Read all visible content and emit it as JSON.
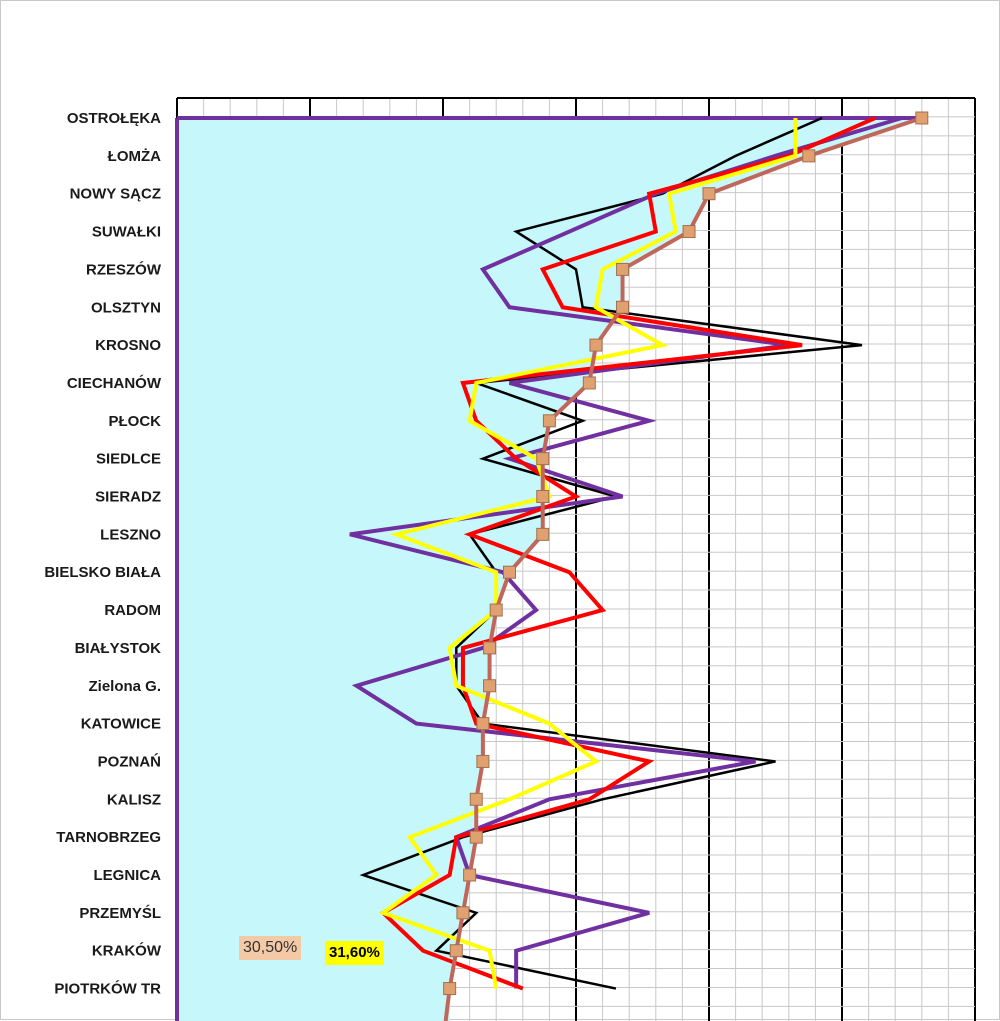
{
  "chart_data": {
    "type": "line",
    "categories": [
      "OSTROŁĘKA",
      "ŁOMŻA",
      "NOWY SĄCZ",
      "SUWAŁKI",
      "RZESZÓW",
      "OLSZTYN",
      "KROSNO",
      "CIECHANÓW",
      "PŁOCK",
      "SIEDLCE",
      "SIERADZ",
      "LESZNO",
      "BIELSKO BIAŁA",
      "RADOM",
      "BIAŁYSTOK",
      "Zielona G.",
      "KATOWICE",
      "POZNAŃ",
      "KALISZ",
      "TARNOBRZEG",
      "LEGNICA",
      "PRZEMYŚL",
      "KRAKÓW",
      "PIOTRKÓW TR"
    ],
    "xlim": [
      0,
      60
    ],
    "grid": true,
    "area_fill_color": "#c6f8fb",
    "area_border_color": "#7030a0",
    "series": [
      {
        "color": "#000000",
        "width": 2.5,
        "values": [
          48.5,
          42.0,
          36.5,
          25.5,
          30.0,
          30.5,
          51.5,
          22.5,
          30.5,
          23.0,
          33.0,
          22.0,
          24.0,
          24.0,
          21.0,
          21.0,
          23.0,
          45.0,
          32.0,
          21.5,
          14.0,
          22.5,
          19.5,
          33.0
        ]
      },
      {
        "color": "#7030a0",
        "width": 4,
        "values": [
          54.5,
          45.0,
          36.0,
          29.5,
          23.0,
          25.0,
          46.0,
          25.0,
          35.5,
          25.0,
          33.5,
          13.0,
          24.5,
          27.0,
          23.0,
          13.5,
          18.0,
          43.5,
          28.0,
          21.0,
          22.0,
          35.5,
          25.5,
          25.5
        ]
      },
      {
        "color": "#ff0000",
        "width": 4,
        "values": [
          52.5,
          46.0,
          35.5,
          36.0,
          27.5,
          29.0,
          47.0,
          21.5,
          22.5,
          25.5,
          30.0,
          22.0,
          29.5,
          32.0,
          21.5,
          21.5,
          22.5,
          35.5,
          31.0,
          21.0,
          20.5,
          15.5,
          18.5,
          26.0
        ]
      },
      {
        "color": "#ffff00",
        "width": 4,
        "values": [
          46.5,
          46.5,
          37.0,
          37.5,
          32.0,
          31.5,
          36.5,
          22.5,
          22.0,
          27.0,
          28.0,
          16.5,
          24.0,
          24.0,
          20.5,
          21.0,
          28.0,
          31.5,
          25.0,
          17.5,
          19.5,
          15.5,
          23.5,
          24.0
        ]
      },
      {
        "color": "#c0665a",
        "width": 4,
        "marker": "square",
        "marker_color": "#e0a070",
        "values": [
          56.0,
          47.5,
          40.0,
          38.5,
          33.5,
          33.5,
          31.5,
          31.0,
          28.0,
          27.5,
          27.5,
          27.5,
          25.0,
          24.0,
          23.5,
          23.5,
          23.0,
          23.0,
          22.5,
          22.5,
          22.0,
          21.5,
          21.0,
          20.5
        ]
      }
    ],
    "annotations": [
      {
        "text": "30,50%",
        "background": "#f4c9a6"
      },
      {
        "text": "31,60%",
        "background": "#ffff00"
      }
    ]
  }
}
